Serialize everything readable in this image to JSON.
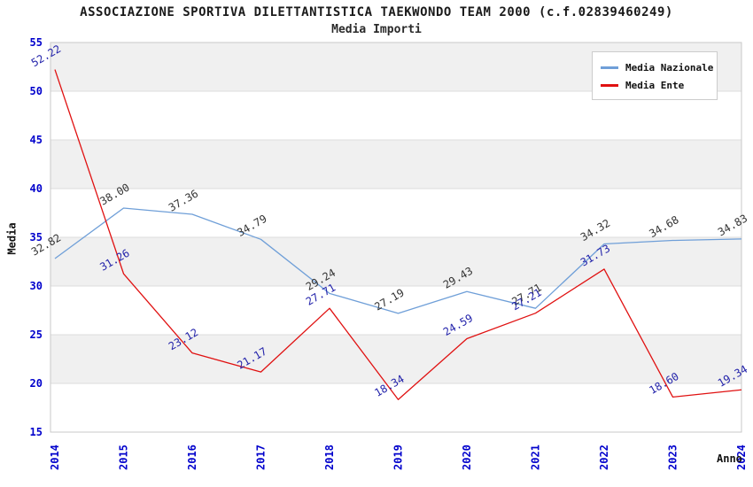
{
  "chart_data": {
    "type": "line",
    "title": "ASSOCIAZIONE SPORTIVA DILETTANTISTICA TAEKWONDO TEAM 2000 (c.f.02839460249)",
    "subtitle": "Media Importi",
    "x": [
      "2014",
      "2015",
      "2016",
      "2017",
      "2018",
      "2019",
      "2020",
      "2021",
      "2022",
      "2023",
      "2024"
    ],
    "xlabel": "Anno",
    "ylabel": "Media",
    "ylim": [
      15,
      55
    ],
    "ytick_step": 5,
    "yticks": [
      55,
      50,
      45,
      40,
      35,
      30,
      25,
      20,
      15
    ],
    "grid": "horizontal-alternating-bands",
    "legend_position": "top-right",
    "series": [
      {
        "name": "Media Nazionale",
        "color": "#6f9fd8",
        "label_color": "#333333",
        "values": [
          32.82,
          38.0,
          37.36,
          34.79,
          29.24,
          27.19,
          29.43,
          27.71,
          34.32,
          34.68,
          34.83
        ]
      },
      {
        "name": "Media Ente",
        "color": "#e01111",
        "label_color": "#2222aa",
        "values": [
          52.22,
          31.26,
          23.12,
          21.17,
          27.71,
          18.34,
          24.59,
          27.21,
          31.73,
          18.6,
          19.34
        ]
      }
    ],
    "style": {
      "band_color_a": "#f0f0f0",
      "band_color_b": "#ffffff",
      "gridline_color": "#dcdcdc",
      "plot_border_color": "#c9c9c9",
      "axis_tick_text_color": "#0000cc",
      "value_label_font_px": 12
    }
  }
}
